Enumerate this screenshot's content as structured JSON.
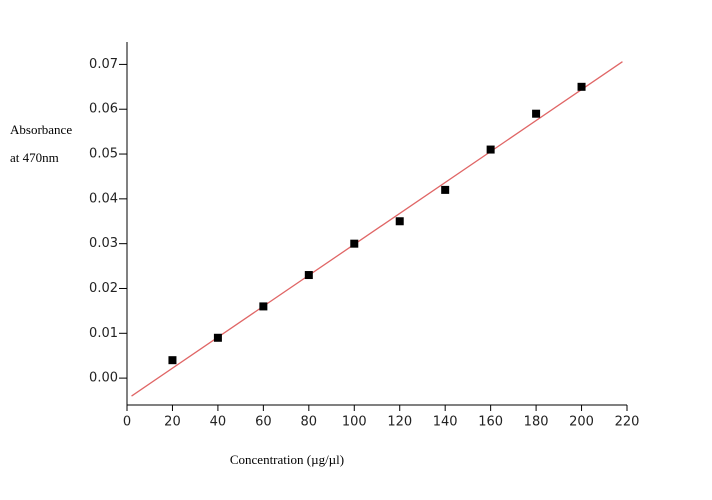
{
  "chart_data": {
    "type": "scatter",
    "xlabel": "Concentration (µg/µl)",
    "ylabel": [
      "Absorbance",
      "at 470nm"
    ],
    "series": [
      {
        "color": "#000000",
        "x": [
          20,
          40,
          60,
          80,
          100,
          120,
          140,
          160,
          180,
          200
        ],
        "values": [
          0.004,
          0.009,
          0.016,
          0.023,
          0.03,
          0.035,
          0.042,
          0.051,
          0.059,
          0.065
        ]
      }
    ],
    "fit_line": {
      "color": "#e06666",
      "x": [
        2,
        218
      ],
      "values": [
        -0.004,
        0.0706
      ]
    },
    "xlim": [
      0,
      220
    ],
    "xticks": [
      0,
      20,
      40,
      60,
      80,
      100,
      120,
      140,
      160,
      180,
      200,
      220
    ],
    "ylim": [
      -0.006,
      0.075
    ],
    "yticks": [
      {
        "value": 0,
        "label": "0.00"
      },
      0.01,
      0.02,
      0.03,
      0.04,
      0.05,
      0.06,
      0.07
    ]
  }
}
